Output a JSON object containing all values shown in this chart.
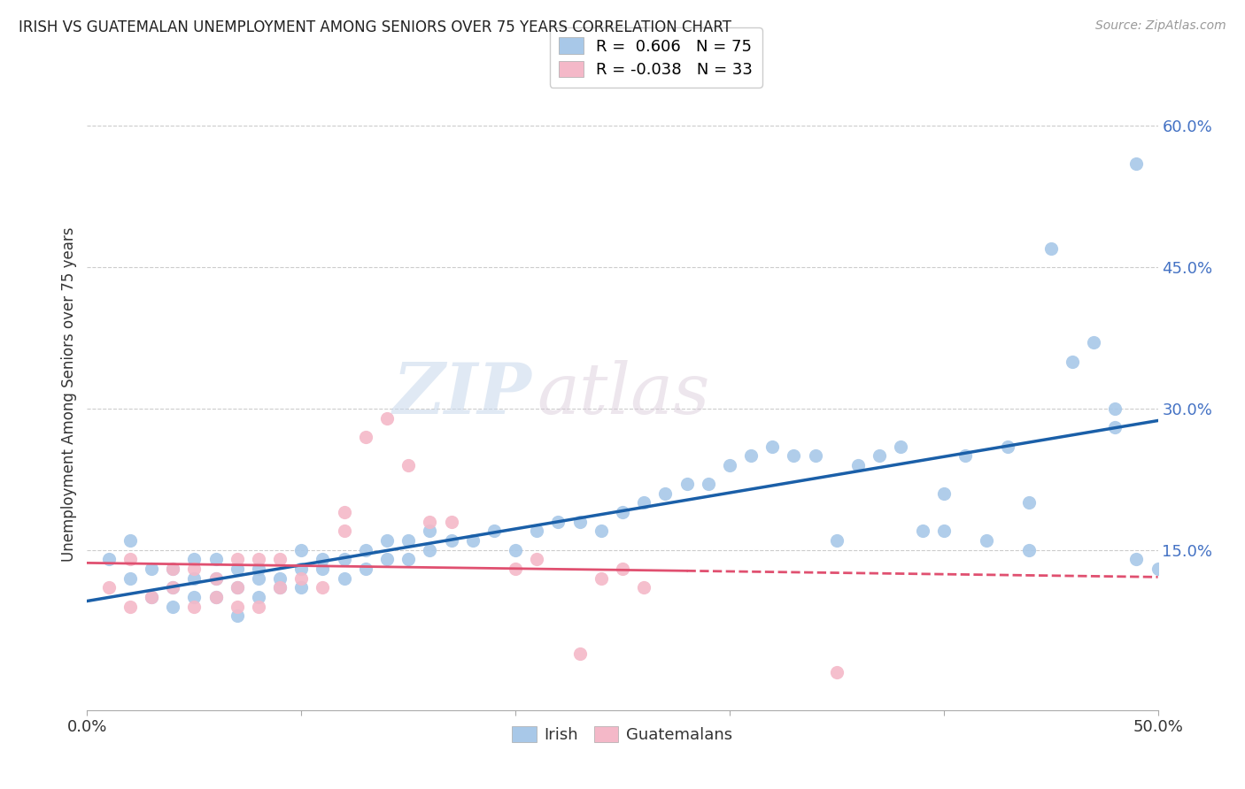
{
  "title": "IRISH VS GUATEMALAN UNEMPLOYMENT AMONG SENIORS OVER 75 YEARS CORRELATION CHART",
  "source": "Source: ZipAtlas.com",
  "ylabel": "Unemployment Among Seniors over 75 years",
  "xlim": [
    0.0,
    0.5
  ],
  "ylim": [
    -0.02,
    0.65
  ],
  "irish_color": "#a8c8e8",
  "irish_edge_color": "#7bafd4",
  "guatemalan_color": "#f4b8c8",
  "guatemalan_edge_color": "#e890a8",
  "irish_line_color": "#1a5fa8",
  "guatemalan_line_color": "#e05070",
  "irish_R": 0.606,
  "irish_N": 75,
  "guatemalan_R": -0.038,
  "guatemalan_N": 33,
  "watermark_zip": "ZIP",
  "watermark_atlas": "atlas",
  "background_color": "#ffffff",
  "grid_color": "#cccccc",
  "irish_x": [
    0.01,
    0.02,
    0.02,
    0.03,
    0.03,
    0.04,
    0.04,
    0.04,
    0.05,
    0.05,
    0.05,
    0.06,
    0.06,
    0.06,
    0.07,
    0.07,
    0.07,
    0.08,
    0.08,
    0.08,
    0.09,
    0.09,
    0.1,
    0.1,
    0.1,
    0.11,
    0.11,
    0.12,
    0.12,
    0.13,
    0.13,
    0.14,
    0.14,
    0.15,
    0.15,
    0.16,
    0.16,
    0.17,
    0.18,
    0.19,
    0.2,
    0.21,
    0.22,
    0.23,
    0.24,
    0.25,
    0.26,
    0.27,
    0.28,
    0.29,
    0.3,
    0.31,
    0.32,
    0.33,
    0.34,
    0.35,
    0.36,
    0.37,
    0.38,
    0.39,
    0.4,
    0.4,
    0.41,
    0.42,
    0.43,
    0.44,
    0.44,
    0.45,
    0.46,
    0.47,
    0.48,
    0.48,
    0.49,
    0.49,
    0.5
  ],
  "irish_y": [
    0.14,
    0.12,
    0.16,
    0.1,
    0.13,
    0.09,
    0.11,
    0.13,
    0.1,
    0.12,
    0.14,
    0.1,
    0.12,
    0.14,
    0.08,
    0.11,
    0.13,
    0.1,
    0.12,
    0.13,
    0.11,
    0.12,
    0.11,
    0.13,
    0.15,
    0.13,
    0.14,
    0.12,
    0.14,
    0.13,
    0.15,
    0.14,
    0.16,
    0.14,
    0.16,
    0.15,
    0.17,
    0.16,
    0.16,
    0.17,
    0.15,
    0.17,
    0.18,
    0.18,
    0.17,
    0.19,
    0.2,
    0.21,
    0.22,
    0.22,
    0.24,
    0.25,
    0.26,
    0.25,
    0.25,
    0.16,
    0.24,
    0.25,
    0.26,
    0.17,
    0.21,
    0.17,
    0.25,
    0.16,
    0.26,
    0.15,
    0.2,
    0.47,
    0.35,
    0.37,
    0.28,
    0.3,
    0.56,
    0.14,
    0.13
  ],
  "guatemalan_x": [
    0.01,
    0.02,
    0.02,
    0.03,
    0.04,
    0.04,
    0.05,
    0.05,
    0.06,
    0.06,
    0.07,
    0.07,
    0.07,
    0.08,
    0.08,
    0.09,
    0.09,
    0.1,
    0.11,
    0.12,
    0.12,
    0.13,
    0.14,
    0.15,
    0.16,
    0.17,
    0.2,
    0.21,
    0.23,
    0.24,
    0.25,
    0.26,
    0.35
  ],
  "guatemalan_y": [
    0.11,
    0.09,
    0.14,
    0.1,
    0.11,
    0.13,
    0.09,
    0.13,
    0.1,
    0.12,
    0.09,
    0.11,
    0.14,
    0.09,
    0.14,
    0.11,
    0.14,
    0.12,
    0.11,
    0.17,
    0.19,
    0.27,
    0.29,
    0.24,
    0.18,
    0.18,
    0.13,
    0.14,
    0.04,
    0.12,
    0.13,
    0.11,
    0.02
  ]
}
